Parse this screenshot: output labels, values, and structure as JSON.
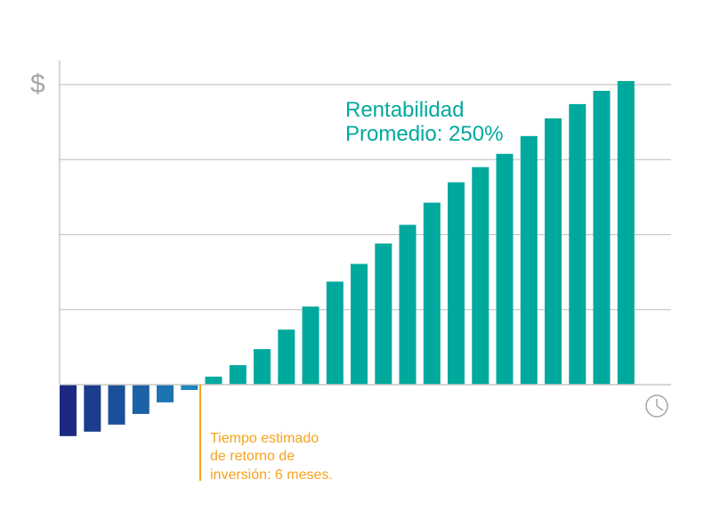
{
  "chart_data": {
    "type": "bar",
    "title": "",
    "xlabel": "",
    "ylabel": "",
    "y_axis_symbol": "$",
    "x_axis_symbol": "clock-icon",
    "grid": true,
    "values": [
      -58,
      -53,
      -45,
      -33,
      -20,
      -6,
      9,
      22,
      40,
      62,
      88,
      116,
      136,
      159,
      180,
      205,
      228,
      245,
      260,
      280,
      300,
      316,
      331,
      342
    ],
    "ylim": [
      -80,
      350
    ],
    "annotations": {
      "profit_line1": "Rentabilidad",
      "profit_line2": "Promedio: 250%",
      "payback_line1": "Tiempo estimado",
      "payback_line2": "de retorno de",
      "payback_line3": "inversión: 6 meses."
    },
    "colors": {
      "positive": "#00a99d",
      "negative_dark": "#1b2a80",
      "negative_light": "#1e86c0",
      "payback_marker": "#f7a21b",
      "grid": "#c8c8c8",
      "axis_symbol": "#a6a6a6"
    }
  }
}
